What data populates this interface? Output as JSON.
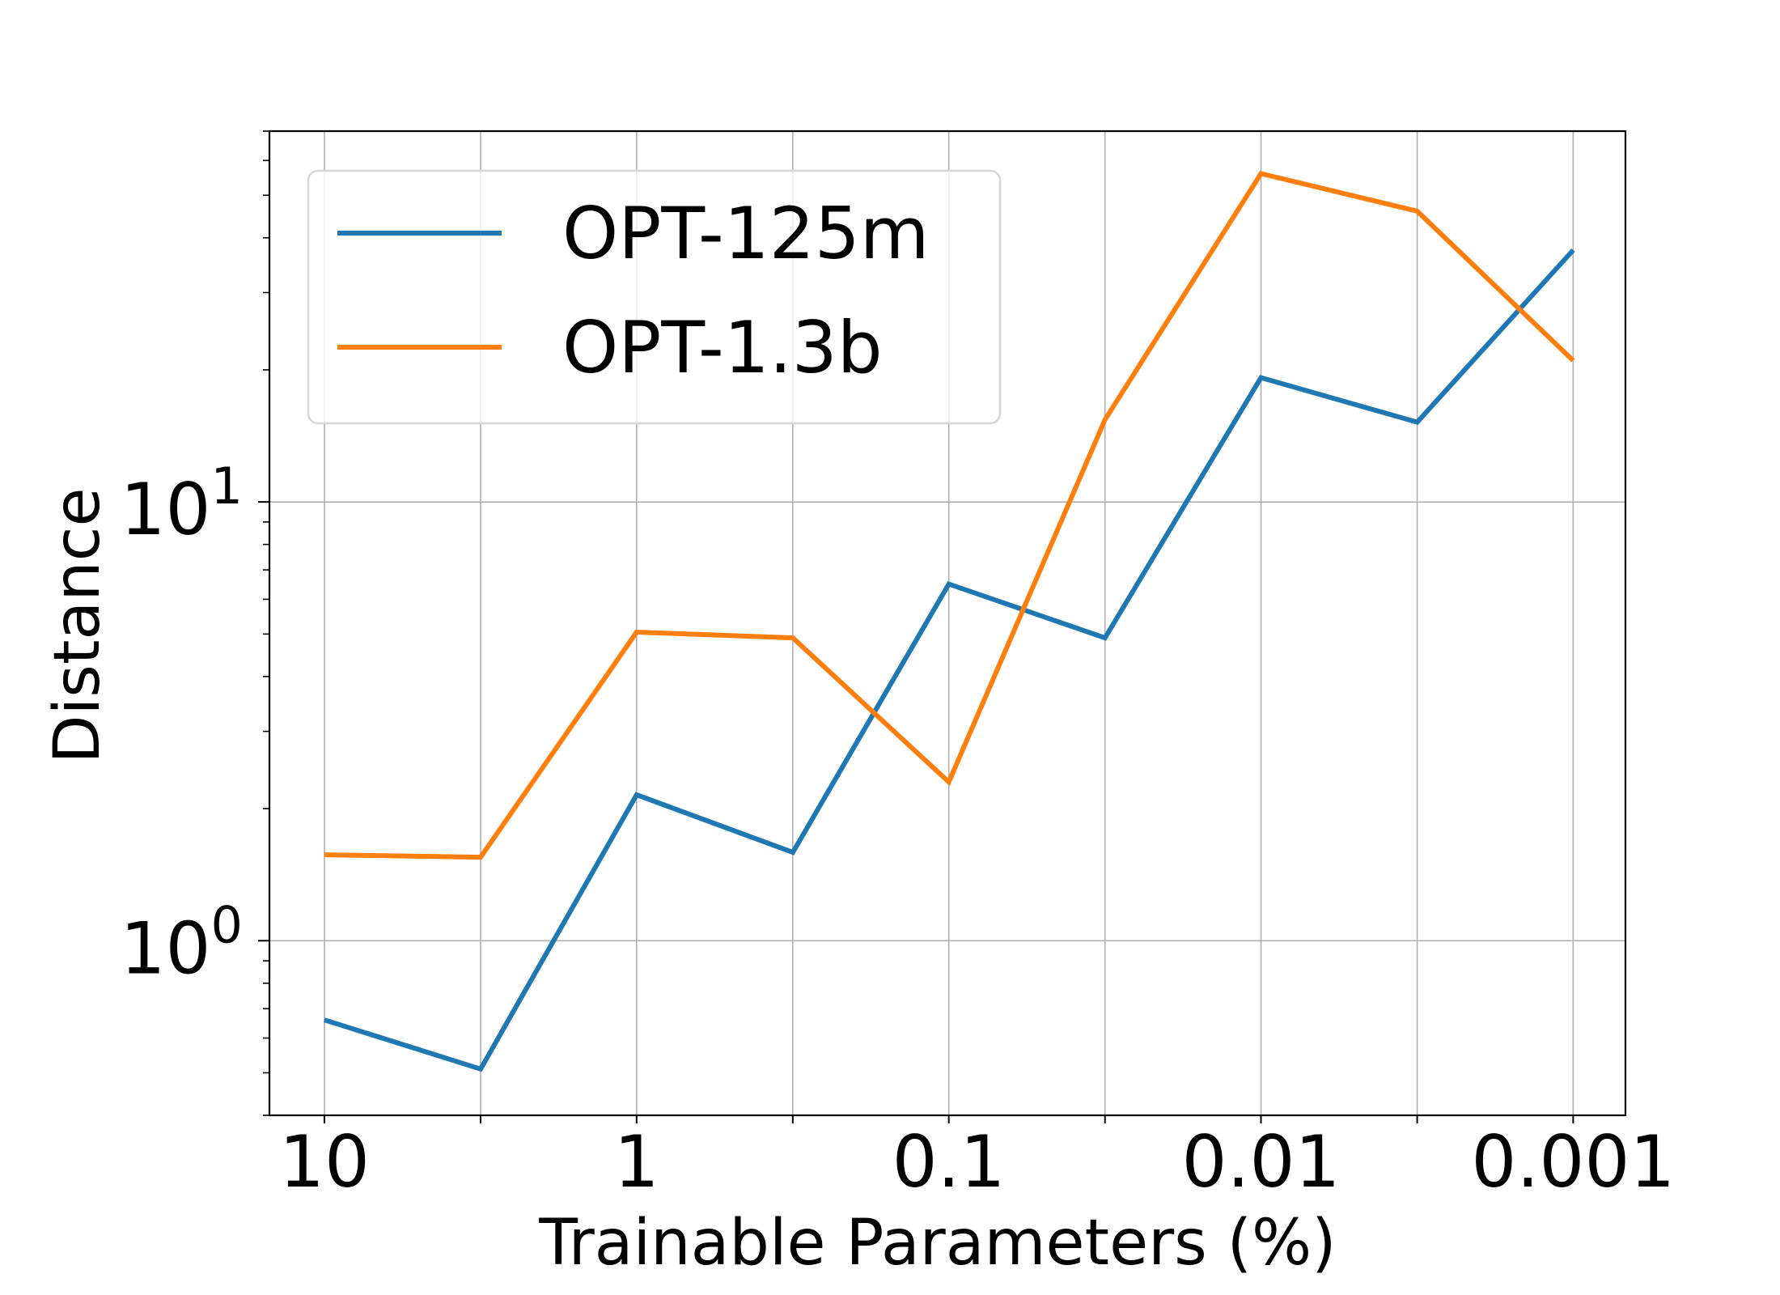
{
  "chart_data": {
    "type": "line",
    "title": "",
    "xlabel": "Trainable Parameters (%)",
    "ylabel": "Distance",
    "x_scale": "log",
    "x_reversed": true,
    "y_scale": "log",
    "x": [
      10,
      3.16,
      1,
      0.316,
      0.1,
      0.0316,
      0.01,
      0.00316,
      0.001
    ],
    "xticks": [
      {
        "value": 10,
        "label": "10"
      },
      {
        "value": 1,
        "label": "1"
      },
      {
        "value": 0.1,
        "label": "0.1"
      },
      {
        "value": 0.01,
        "label": "0.01"
      },
      {
        "value": 0.001,
        "label": "0.001"
      }
    ],
    "yticks": [
      {
        "value": 1,
        "base": "10",
        "exp": "0"
      },
      {
        "value": 10,
        "base": "10",
        "exp": "1"
      }
    ],
    "xlim": [
      15,
      0.00068
    ],
    "ylim": [
      0.4,
      70
    ],
    "grid": true,
    "legend_position": "top-left",
    "series": [
      {
        "name": "OPT-125m",
        "color": "#1f77b4",
        "values": [
          0.66,
          0.51,
          2.15,
          1.59,
          6.5,
          4.9,
          19.2,
          15.2,
          37.5
        ]
      },
      {
        "name": "OPT-1.3b",
        "color": "#ff7f0e",
        "values": [
          1.57,
          1.55,
          5.05,
          4.9,
          2.3,
          15.4,
          56,
          46,
          21
        ]
      }
    ]
  }
}
